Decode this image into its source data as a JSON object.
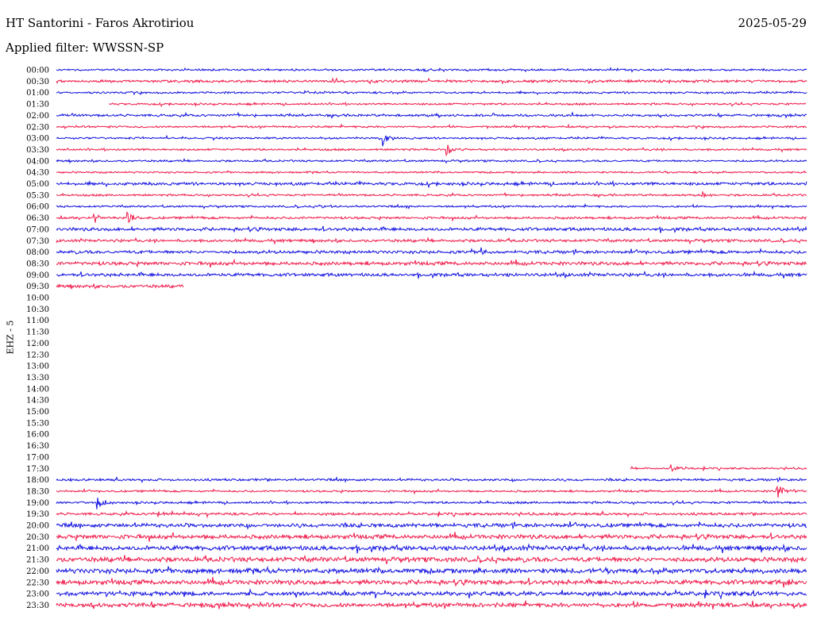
{
  "header": {
    "station": "HT Santorini - Faros Akrotiriou",
    "date": "2025-05-29",
    "filter": "Applied filter: WWSSN-SP",
    "channel": "EHZ - 5"
  },
  "colors": {
    "even_trace": "#1010e0",
    "odd_trace": "#f01848",
    "text": "#000000"
  },
  "chart_data": {
    "type": "helicorder",
    "rows": [
      {
        "time": "00:00",
        "start": 0,
        "end": 1,
        "amp": 1.0,
        "events": [
          {
            "at": 0.49,
            "amp": 3
          }
        ]
      },
      {
        "time": "00:30",
        "start": 0,
        "end": 1,
        "amp": 1.3,
        "events": []
      },
      {
        "time": "01:00",
        "start": 0,
        "end": 1,
        "amp": 1.0,
        "events": [
          {
            "at": 0.33,
            "amp": 3
          }
        ]
      },
      {
        "time": "01:30",
        "start": 0.07,
        "end": 1,
        "amp": 1.0,
        "events": []
      },
      {
        "time": "02:00",
        "start": 0,
        "end": 1,
        "amp": 1.2,
        "events": []
      },
      {
        "time": "02:30",
        "start": 0,
        "end": 1,
        "amp": 1.0,
        "events": []
      },
      {
        "time": "03:00",
        "start": 0,
        "end": 1,
        "amp": 1.0,
        "events": [
          {
            "at": 0.435,
            "amp": 10
          }
        ]
      },
      {
        "time": "03:30",
        "start": 0,
        "end": 1,
        "amp": 1.0,
        "events": [
          {
            "at": 0.52,
            "amp": 9
          }
        ]
      },
      {
        "time": "04:00",
        "start": 0,
        "end": 1,
        "amp": 1.0,
        "events": []
      },
      {
        "time": "04:30",
        "start": 0,
        "end": 1,
        "amp": 0.9,
        "events": []
      },
      {
        "time": "05:00",
        "start": 0,
        "end": 1,
        "amp": 1.5,
        "events": []
      },
      {
        "time": "05:30",
        "start": 0,
        "end": 1,
        "amp": 1.0,
        "events": [
          {
            "at": 0.86,
            "amp": 4
          }
        ]
      },
      {
        "time": "06:00",
        "start": 0,
        "end": 1,
        "amp": 1.0,
        "events": [
          {
            "at": 0.35,
            "amp": 3
          },
          {
            "at": 0.47,
            "amp": 3
          }
        ]
      },
      {
        "time": "06:30",
        "start": 0,
        "end": 1,
        "amp": 1.2,
        "events": [
          {
            "at": 0.05,
            "amp": 7
          },
          {
            "at": 0.095,
            "amp": 9
          }
        ]
      },
      {
        "time": "07:00",
        "start": 0,
        "end": 1,
        "amp": 1.7,
        "events": []
      },
      {
        "time": "07:30",
        "start": 0,
        "end": 1,
        "amp": 1.4,
        "events": []
      },
      {
        "time": "08:00",
        "start": 0,
        "end": 1,
        "amp": 1.6,
        "events": [
          {
            "at": 0.565,
            "amp": 5
          }
        ]
      },
      {
        "time": "08:30",
        "start": 0,
        "end": 1,
        "amp": 1.8,
        "events": []
      },
      {
        "time": "09:00",
        "start": 0,
        "end": 1,
        "amp": 1.7,
        "events": []
      },
      {
        "time": "09:30",
        "start": 0,
        "end": 0.17,
        "amp": 1.6,
        "events": []
      },
      {
        "time": "10:00",
        "start": 0,
        "end": 0,
        "amp": 0,
        "events": []
      },
      {
        "time": "10:30",
        "start": 0,
        "end": 0,
        "amp": 0,
        "events": []
      },
      {
        "time": "11:00",
        "start": 0,
        "end": 0,
        "amp": 0,
        "events": []
      },
      {
        "time": "11:30",
        "start": 0,
        "end": 0,
        "amp": 0,
        "events": []
      },
      {
        "time": "12:00",
        "start": 0,
        "end": 0,
        "amp": 0,
        "events": []
      },
      {
        "time": "12:30",
        "start": 0,
        "end": 0,
        "amp": 0,
        "events": []
      },
      {
        "time": "13:00",
        "start": 0,
        "end": 0,
        "amp": 0,
        "events": []
      },
      {
        "time": "13:30",
        "start": 0,
        "end": 0,
        "amp": 0,
        "events": []
      },
      {
        "time": "14:00",
        "start": 0,
        "end": 0,
        "amp": 0,
        "events": []
      },
      {
        "time": "14:30",
        "start": 0,
        "end": 0,
        "amp": 0,
        "events": []
      },
      {
        "time": "15:00",
        "start": 0,
        "end": 0,
        "amp": 0,
        "events": []
      },
      {
        "time": "15:30",
        "start": 0,
        "end": 0,
        "amp": 0,
        "events": []
      },
      {
        "time": "16:00",
        "start": 0,
        "end": 0,
        "amp": 0,
        "events": []
      },
      {
        "time": "16:30",
        "start": 0,
        "end": 0,
        "amp": 0,
        "events": []
      },
      {
        "time": "17:00",
        "start": 0,
        "end": 0,
        "amp": 0,
        "events": []
      },
      {
        "time": "17:30",
        "start": 0.765,
        "end": 1,
        "amp": 0.9,
        "events": [
          {
            "at": 0.82,
            "amp": 5
          }
        ]
      },
      {
        "time": "18:00",
        "start": 0,
        "end": 1,
        "amp": 1.2,
        "events": []
      },
      {
        "time": "18:30",
        "start": 0,
        "end": 1,
        "amp": 1.0,
        "events": [
          {
            "at": 0.96,
            "amp": 11
          }
        ]
      },
      {
        "time": "19:00",
        "start": 0,
        "end": 1,
        "amp": 1.1,
        "events": [
          {
            "at": 0.055,
            "amp": 11
          }
        ]
      },
      {
        "time": "19:30",
        "start": 0,
        "end": 1,
        "amp": 1.3,
        "events": [
          {
            "at": 0.13,
            "amp": 6
          },
          {
            "at": 0.19,
            "amp": 4
          }
        ]
      },
      {
        "time": "20:00",
        "start": 0,
        "end": 1,
        "amp": 2.0,
        "events": []
      },
      {
        "time": "20:30",
        "start": 0,
        "end": 1,
        "amp": 2.2,
        "events": []
      },
      {
        "time": "21:00",
        "start": 0,
        "end": 1,
        "amp": 2.4,
        "events": []
      },
      {
        "time": "21:30",
        "start": 0,
        "end": 1,
        "amp": 2.4,
        "events": []
      },
      {
        "time": "22:00",
        "start": 0,
        "end": 1,
        "amp": 2.5,
        "events": [
          {
            "at": 0.925,
            "amp": 5
          }
        ]
      },
      {
        "time": "22:30",
        "start": 0,
        "end": 1,
        "amp": 2.4,
        "events": [
          {
            "at": 0.97,
            "amp": 5
          }
        ]
      },
      {
        "time": "23:00",
        "start": 0,
        "end": 1,
        "amp": 2.2,
        "events": [
          {
            "at": 0.93,
            "amp": 4
          }
        ]
      },
      {
        "time": "23:30",
        "start": 0,
        "end": 1,
        "amp": 2.2,
        "events": []
      }
    ]
  }
}
